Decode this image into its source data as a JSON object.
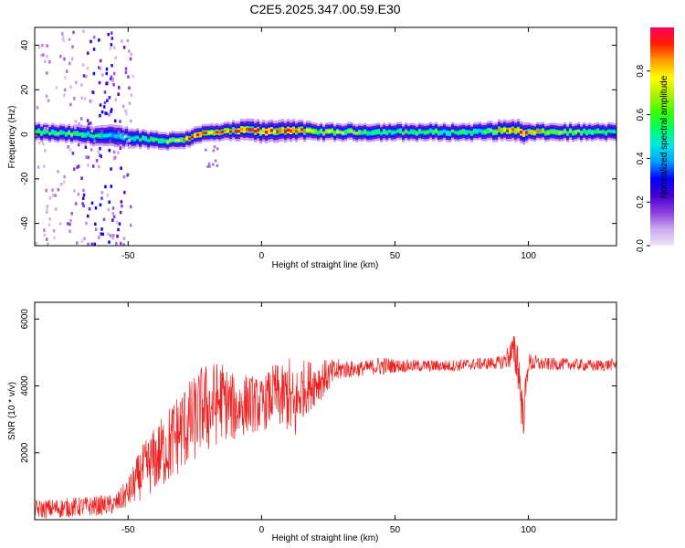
{
  "figure": {
    "title": "C2E5.2025.347.00.59.E30"
  },
  "chart_data": [
    {
      "type": "heatmap",
      "xlabel": "Height of straight line (km)",
      "ylabel": "Frequency (Hz)",
      "xlim": [
        -85,
        133
      ],
      "ylim": [
        -50,
        48
      ],
      "xticks": [
        -50,
        0,
        50,
        100
      ],
      "yticks": [
        -40,
        -20,
        0,
        20,
        40
      ],
      "colorbar": {
        "label": "Normalized spectral amplitude",
        "range": [
          0,
          1
        ],
        "ticks": [
          0.0,
          0.2,
          0.4,
          0.6,
          0.8
        ],
        "colormap": [
          "#f0e6f8",
          "#c9a8ec",
          "#8b3ce0",
          "#4400d0",
          "#0000ff",
          "#00a0ff",
          "#00e8e0",
          "#00ff60",
          "#40ff00",
          "#b0f000",
          "#ffff00",
          "#ffa000",
          "#ff2000",
          "#ff0060"
        ]
      },
      "ridge": {
        "x": [
          -85,
          -70,
          -55,
          -45,
          -35,
          -28,
          -25,
          -15,
          -5,
          0,
          10,
          20,
          40,
          60,
          80,
          95,
          98,
          100,
          115,
          133
        ],
        "freq": [
          1,
          0,
          -1,
          -2,
          -3,
          -2,
          0,
          1,
          2,
          1,
          2,
          1,
          1,
          1,
          1,
          2,
          0,
          1,
          1,
          1
        ],
        "amp": [
          0.55,
          0.6,
          0.45,
          0.5,
          0.6,
          0.85,
          0.9,
          0.9,
          0.85,
          0.9,
          0.95,
          0.7,
          0.6,
          0.55,
          0.55,
          0.9,
          0.95,
          0.8,
          0.6,
          0.5
        ],
        "width_hz": [
          4,
          4,
          5,
          4,
          4,
          4,
          4,
          4,
          5,
          5,
          5,
          4,
          4,
          4,
          4,
          5,
          5,
          4,
          4,
          4
        ]
      },
      "scatter_band": {
        "xrange": [
          -85,
          -48
        ],
        "freq_range": [
          -50,
          48
        ]
      }
    },
    {
      "type": "line",
      "xlabel": "Height of straight line (km)",
      "ylabel": "SNR (10 * v/v)",
      "xlim": [
        -85,
        133
      ],
      "ylim": [
        0,
        6500
      ],
      "xticks": [
        -50,
        0,
        50,
        100
      ],
      "yticks": [
        2000,
        4000,
        6000
      ],
      "series": [
        {
          "color": "#ee2020",
          "x": [
            -85,
            -75,
            -65,
            -55,
            -50,
            -45,
            -40,
            -35,
            -30,
            -25,
            -22,
            -20,
            -15,
            -10,
            -5,
            0,
            5,
            8,
            10,
            12,
            15,
            20,
            25,
            30,
            35,
            40,
            45,
            50,
            60,
            70,
            80,
            90,
            94,
            96,
            98,
            100,
            105,
            115,
            125,
            133
          ],
          "y": [
            300,
            350,
            400,
            450,
            800,
            1400,
            1800,
            2200,
            2700,
            3000,
            3400,
            3300,
            3600,
            3300,
            3500,
            3400,
            3800,
            3600,
            3800,
            3200,
            3900,
            4100,
            4300,
            4500,
            4500,
            4550,
            4600,
            4600,
            4600,
            4600,
            4650,
            4700,
            5000,
            4800,
            3000,
            4700,
            4650,
            4650,
            4600,
            4650
          ],
          "noise": [
            280,
            300,
            300,
            300,
            450,
            800,
            1000,
            1200,
            1300,
            1300,
            1300,
            1400,
            1200,
            1000,
            900,
            800,
            900,
            1000,
            1200,
            1300,
            900,
            700,
            500,
            300,
            250,
            220,
            300,
            200,
            180,
            180,
            180,
            200,
            500,
            900,
            700,
            300,
            200,
            180,
            180,
            180
          ]
        }
      ]
    }
  ]
}
